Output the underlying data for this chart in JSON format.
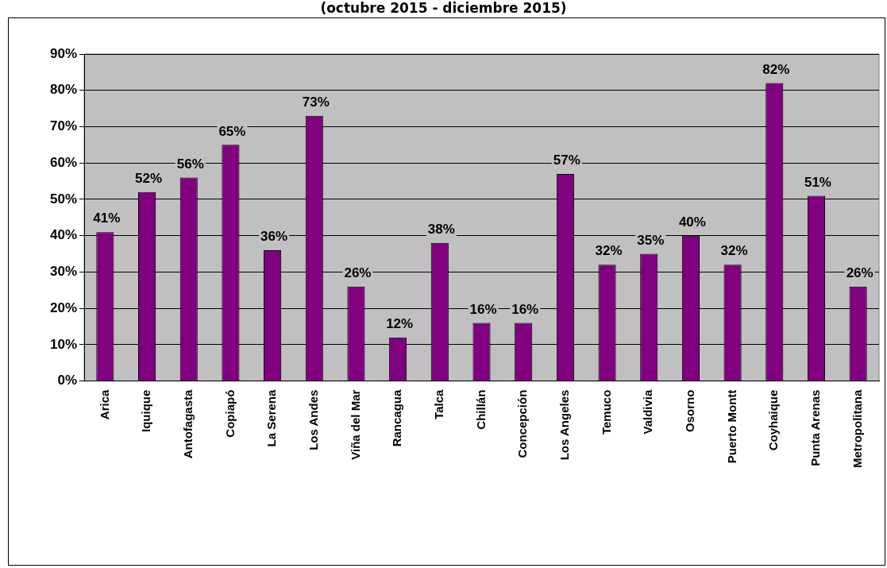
{
  "chart_data": {
    "type": "bar",
    "title": "(octubre 2015 - diciembre 2015)",
    "categories": [
      "Arica",
      "Iquique",
      "Antofagasta",
      "Copiapó",
      "La Serena",
      "Los Andes",
      "Viña del Mar",
      "Rancagua",
      "Talca",
      "Chillán",
      "Concepción",
      "Los Angeles",
      "Temuco",
      "Valdivia",
      "Osorno",
      "Puerto Montt",
      "Coyhaique",
      "Punta Arenas",
      "Metropolitana"
    ],
    "values": [
      41,
      52,
      56,
      65,
      36,
      73,
      26,
      12,
      38,
      16,
      16,
      57,
      32,
      35,
      40,
      32,
      82,
      51,
      26
    ],
    "value_labels": [
      "41%",
      "52%",
      "56%",
      "65%",
      "36%",
      "73%",
      "26%",
      "12%",
      "38%",
      "16%",
      "16%",
      "57%",
      "32%",
      "35%",
      "40%",
      "32%",
      "82%",
      "51%",
      "26%"
    ],
    "color": "#800080",
    "ylim": [
      0,
      90
    ],
    "yticks": [
      {
        "value": 0,
        "label": "0%"
      },
      {
        "value": 10,
        "label": "10%"
      },
      {
        "value": 20,
        "label": "20%"
      },
      {
        "value": 30,
        "label": "30%"
      },
      {
        "value": 40,
        "label": "40%"
      },
      {
        "value": 50,
        "label": "50%"
      },
      {
        "value": 60,
        "label": "60%"
      },
      {
        "value": 70,
        "label": "70%"
      },
      {
        "value": 80,
        "label": "80%"
      },
      {
        "value": 90,
        "label": "90%"
      }
    ],
    "grid": "y",
    "legend": false
  }
}
